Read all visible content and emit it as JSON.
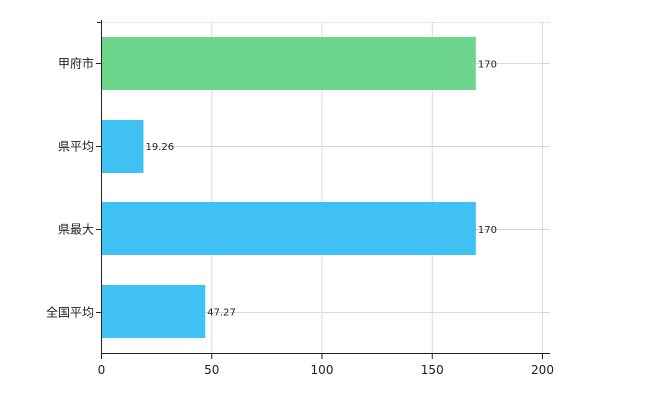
{
  "chart_data": {
    "type": "bar",
    "orientation": "horizontal",
    "categories": [
      "甲府市",
      "県平均",
      "県最大",
      "全国平均"
    ],
    "values": [
      170,
      19.26,
      170,
      47.27
    ],
    "value_labels": [
      "170",
      "19.26",
      "170",
      "47.27"
    ],
    "bar_colors": [
      "#6dd58c",
      "#3fc1f3",
      "#3fc1f3",
      "#3fc1f3"
    ],
    "xlim": [
      0,
      200
    ],
    "x_ticks": [
      0,
      50,
      100,
      150,
      200
    ],
    "grid": true,
    "legend": "none",
    "title": "",
    "xlabel": "",
    "ylabel": ""
  }
}
